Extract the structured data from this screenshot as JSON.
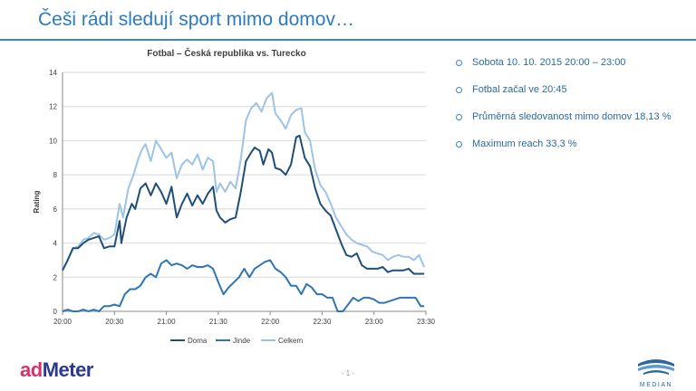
{
  "slide": {
    "title": "Češi rádi sledují sport mimo domov…",
    "page_number": "- 1 -",
    "logo_left_ad": "ad",
    "logo_left_meter": "Meter",
    "logo_right_text": "MEDIAN"
  },
  "bullets": [
    "Sobota 10. 10. 2015 20:00 – 23:00",
    "Fotbal začal ve 20:45",
    "Průměrná sledovanost mimo domov 18,13 %",
    "Maximum reach 33,3 %"
  ],
  "colors": {
    "title": "#2b7bc0",
    "doma": "#1f4e79",
    "jinde": "#2e75b6",
    "celkem": "#9dc3e6"
  },
  "chart_data": {
    "type": "line",
    "title": "Fotbal – Česká republika vs. Turecko",
    "ylabel": "Rating",
    "xlabel": "",
    "xticks": [
      "20:00",
      "20:30",
      "21:00",
      "21:30",
      "22:00",
      "22:30",
      "23:00",
      "23:30"
    ],
    "yticks": [
      0,
      2,
      4,
      6,
      8,
      10,
      12,
      14
    ],
    "ylim": [
      0,
      14
    ],
    "xlim_minutes": [
      0,
      210
    ],
    "grid": true,
    "legend": "bottom",
    "series": [
      {
        "name": "Doma",
        "color": "#1f4e79",
        "points": [
          [
            0,
            2.4
          ],
          [
            3,
            3.0
          ],
          [
            6,
            3.7
          ],
          [
            9,
            3.7
          ],
          [
            12,
            4.0
          ],
          [
            15,
            4.2
          ],
          [
            18,
            4.3
          ],
          [
            21,
            4.4
          ],
          [
            24,
            3.7
          ],
          [
            27,
            3.8
          ],
          [
            30,
            3.8
          ],
          [
            33,
            5.3
          ],
          [
            34,
            4.0
          ],
          [
            37,
            5.5
          ],
          [
            40,
            6.3
          ],
          [
            42,
            6.0
          ],
          [
            45,
            7.2
          ],
          [
            48,
            7.5
          ],
          [
            51,
            6.8
          ],
          [
            54,
            7.5
          ],
          [
            57,
            7.0
          ],
          [
            60,
            6.3
          ],
          [
            63,
            7.3
          ],
          [
            66,
            5.5
          ],
          [
            69,
            6.3
          ],
          [
            72,
            6.9
          ],
          [
            75,
            6.2
          ],
          [
            78,
            6.8
          ],
          [
            81,
            6.3
          ],
          [
            84,
            6.9
          ],
          [
            87,
            7.3
          ],
          [
            89,
            5.9
          ],
          [
            91,
            5.5
          ],
          [
            94,
            5.2
          ],
          [
            97,
            5.4
          ],
          [
            100,
            5.5
          ],
          [
            103,
            7.0
          ],
          [
            106,
            8.8
          ],
          [
            109,
            9.3
          ],
          [
            111,
            9.6
          ],
          [
            114,
            9.4
          ],
          [
            116,
            8.6
          ],
          [
            119,
            9.5
          ],
          [
            121,
            9.3
          ],
          [
            123,
            8.4
          ],
          [
            126,
            8.3
          ],
          [
            129,
            8.0
          ],
          [
            132,
            8.6
          ],
          [
            135,
            10.2
          ],
          [
            137,
            10.3
          ],
          [
            140,
            9.0
          ],
          [
            143,
            8.5
          ],
          [
            146,
            7.2
          ],
          [
            149,
            6.3
          ],
          [
            152,
            5.9
          ],
          [
            155,
            5.6
          ],
          [
            158,
            4.8
          ],
          [
            161,
            4.0
          ],
          [
            164,
            3.3
          ],
          [
            167,
            3.2
          ],
          [
            170,
            3.4
          ],
          [
            173,
            2.7
          ],
          [
            176,
            2.5
          ],
          [
            179,
            2.5
          ],
          [
            182,
            2.5
          ],
          [
            185,
            2.6
          ],
          [
            188,
            2.3
          ],
          [
            191,
            2.4
          ],
          [
            194,
            2.4
          ],
          [
            197,
            2.4
          ],
          [
            200,
            2.5
          ],
          [
            203,
            2.2
          ],
          [
            206,
            2.2
          ],
          [
            209,
            2.2
          ]
        ]
      },
      {
        "name": "Jinde",
        "color": "#2e75b6",
        "points": [
          [
            0,
            0.0
          ],
          [
            3,
            0.1
          ],
          [
            6,
            0.0
          ],
          [
            9,
            0.0
          ],
          [
            12,
            0.1
          ],
          [
            15,
            0.0
          ],
          [
            18,
            0.1
          ],
          [
            21,
            0.0
          ],
          [
            24,
            0.3
          ],
          [
            27,
            0.3
          ],
          [
            30,
            0.4
          ],
          [
            33,
            0.3
          ],
          [
            36,
            1.0
          ],
          [
            39,
            1.3
          ],
          [
            42,
            1.3
          ],
          [
            45,
            1.5
          ],
          [
            48,
            2.0
          ],
          [
            51,
            2.2
          ],
          [
            54,
            2.0
          ],
          [
            57,
            2.8
          ],
          [
            60,
            3.0
          ],
          [
            63,
            2.7
          ],
          [
            66,
            2.8
          ],
          [
            69,
            2.7
          ],
          [
            72,
            2.5
          ],
          [
            75,
            2.7
          ],
          [
            78,
            2.6
          ],
          [
            81,
            2.6
          ],
          [
            84,
            2.7
          ],
          [
            87,
            2.5
          ],
          [
            90,
            1.7
          ],
          [
            93,
            1.0
          ],
          [
            96,
            1.4
          ],
          [
            99,
            1.7
          ],
          [
            102,
            2.0
          ],
          [
            105,
            2.5
          ],
          [
            108,
            2.0
          ],
          [
            111,
            2.5
          ],
          [
            114,
            2.7
          ],
          [
            117,
            2.9
          ],
          [
            120,
            3.0
          ],
          [
            123,
            2.5
          ],
          [
            126,
            2.3
          ],
          [
            129,
            2.0
          ],
          [
            132,
            1.5
          ],
          [
            135,
            1.5
          ],
          [
            138,
            1.0
          ],
          [
            141,
            1.6
          ],
          [
            144,
            1.4
          ],
          [
            147,
            1.0
          ],
          [
            150,
            1.0
          ],
          [
            153,
            0.8
          ],
          [
            156,
            0.8
          ],
          [
            159,
            0.0
          ],
          [
            162,
            0.0
          ],
          [
            165,
            0.4
          ],
          [
            168,
            0.8
          ],
          [
            171,
            0.6
          ],
          [
            174,
            0.8
          ],
          [
            177,
            0.8
          ],
          [
            180,
            0.7
          ],
          [
            183,
            0.5
          ],
          [
            186,
            0.5
          ],
          [
            189,
            0.6
          ],
          [
            192,
            0.7
          ],
          [
            195,
            0.8
          ],
          [
            198,
            0.8
          ],
          [
            201,
            0.8
          ],
          [
            204,
            0.8
          ],
          [
            207,
            0.3
          ],
          [
            209,
            0.3
          ]
        ]
      },
      {
        "name": "Celkem",
        "color": "#9dc3e6",
        "points": [
          [
            0,
            2.4
          ],
          [
            3,
            3.0
          ],
          [
            6,
            3.7
          ],
          [
            9,
            3.8
          ],
          [
            12,
            4.2
          ],
          [
            15,
            4.3
          ],
          [
            18,
            4.6
          ],
          [
            21,
            4.5
          ],
          [
            24,
            4.2
          ],
          [
            27,
            4.3
          ],
          [
            30,
            4.5
          ],
          [
            33,
            6.3
          ],
          [
            35,
            5.5
          ],
          [
            38,
            7.2
          ],
          [
            41,
            8.0
          ],
          [
            44,
            9.0
          ],
          [
            46,
            9.5
          ],
          [
            48,
            9.8
          ],
          [
            51,
            8.8
          ],
          [
            54,
            10.0
          ],
          [
            57,
            9.5
          ],
          [
            60,
            9.0
          ],
          [
            63,
            9.3
          ],
          [
            66,
            7.8
          ],
          [
            69,
            8.6
          ],
          [
            72,
            8.9
          ],
          [
            75,
            8.6
          ],
          [
            78,
            9.2
          ],
          [
            81,
            8.3
          ],
          [
            84,
            9.0
          ],
          [
            87,
            8.8
          ],
          [
            89,
            7.0
          ],
          [
            91,
            7.5
          ],
          [
            94,
            7.0
          ],
          [
            97,
            7.6
          ],
          [
            100,
            7.2
          ],
          [
            103,
            8.9
          ],
          [
            106,
            11.2
          ],
          [
            109,
            11.9
          ],
          [
            112,
            12.2
          ],
          [
            115,
            11.7
          ],
          [
            118,
            12.5
          ],
          [
            121,
            12.8
          ],
          [
            123,
            11.6
          ],
          [
            126,
            11.2
          ],
          [
            129,
            10.7
          ],
          [
            132,
            11.5
          ],
          [
            135,
            11.8
          ],
          [
            138,
            11.9
          ],
          [
            140,
            10.5
          ],
          [
            143,
            10.0
          ],
          [
            146,
            8.3
          ],
          [
            149,
            7.4
          ],
          [
            152,
            7.0
          ],
          [
            155,
            6.3
          ],
          [
            158,
            5.5
          ],
          [
            161,
            5.0
          ],
          [
            164,
            4.5
          ],
          [
            167,
            4.2
          ],
          [
            170,
            4.0
          ],
          [
            173,
            3.9
          ],
          [
            176,
            3.8
          ],
          [
            179,
            3.5
          ],
          [
            182,
            3.4
          ],
          [
            185,
            3.3
          ],
          [
            188,
            3.0
          ],
          [
            191,
            3.2
          ],
          [
            194,
            3.3
          ],
          [
            197,
            3.2
          ],
          [
            200,
            3.2
          ],
          [
            203,
            3.0
          ],
          [
            206,
            3.3
          ],
          [
            209,
            2.6
          ]
        ]
      }
    ]
  }
}
